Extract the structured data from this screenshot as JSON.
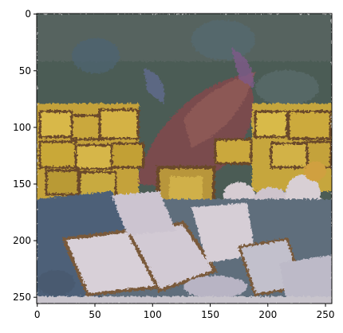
{
  "figure": {
    "x_ticks": [
      "0",
      "50",
      "100",
      "150",
      "200",
      "250"
    ],
    "y_ticks": [
      "0",
      "50",
      "100",
      "150",
      "200",
      "250"
    ],
    "x_tick_values": [
      0,
      50,
      100,
      150,
      200,
      250
    ],
    "y_tick_values": [
      0,
      50,
      100,
      150,
      200,
      250
    ],
    "image_extent": [
      256,
      256
    ],
    "colors": {
      "sky": "#4a5a52",
      "bread_yellow": "#c9a83a",
      "bread_brown": "#8a6a3a",
      "plum": "#7a4a5a",
      "slice_pale": "#d8d0d8",
      "shadow_blue": "#3e5a70",
      "crust": "#6b4a2a"
    }
  }
}
